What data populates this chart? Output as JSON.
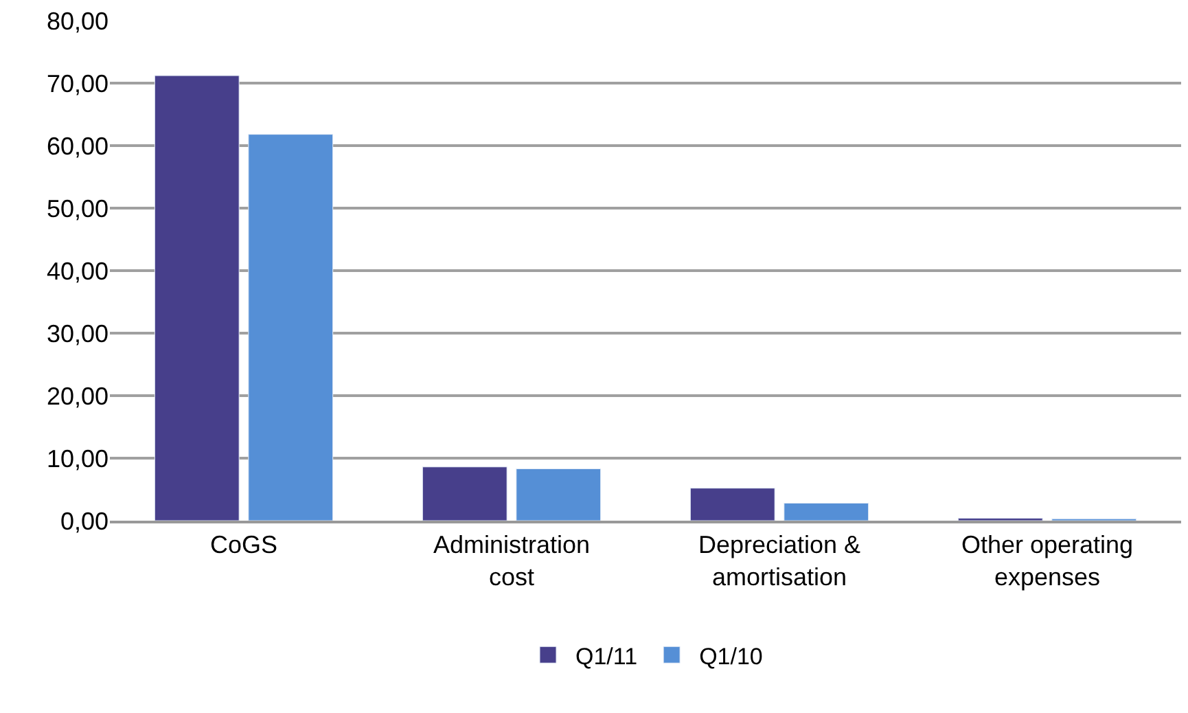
{
  "chart_data": {
    "type": "bar",
    "categories": [
      "CoGS",
      "Administration cost",
      "Depreciation & amortisation",
      "Other operating expenses"
    ],
    "series": [
      {
        "name": "Q1/11",
        "color": "#473f8b",
        "values": [
          71.2,
          8.6,
          5.2,
          0.4
        ]
      },
      {
        "name": "Q1/10",
        "color": "#558fd6",
        "values": [
          61.8,
          8.3,
          2.8,
          0.3
        ]
      }
    ],
    "ylim": [
      0,
      80
    ],
    "yticks": [
      {
        "value": 0,
        "label": "0,00"
      },
      {
        "value": 10,
        "label": "10,00"
      },
      {
        "value": 20,
        "label": "20,00"
      },
      {
        "value": 30,
        "label": "30,00"
      },
      {
        "value": 40,
        "label": "40,00"
      },
      {
        "value": 50,
        "label": "50,00"
      },
      {
        "value": 60,
        "label": "60,00"
      },
      {
        "value": 70,
        "label": "70,00"
      },
      {
        "value": 80,
        "label": "80,00"
      }
    ],
    "grid": "y",
    "legend": "bottom"
  }
}
